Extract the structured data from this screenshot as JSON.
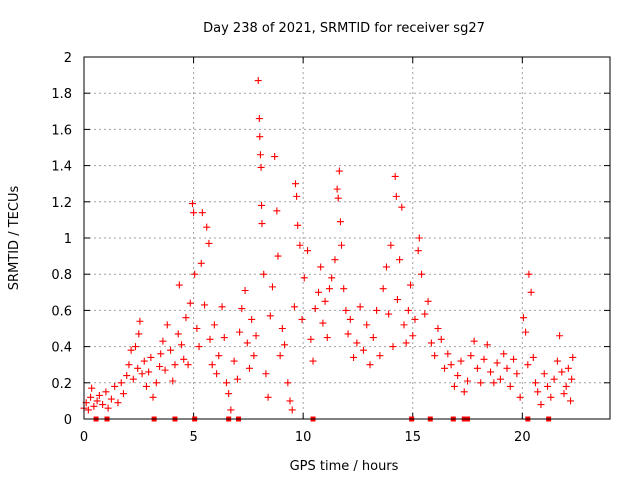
{
  "chart_data": {
    "type": "scatter",
    "title": "Day 238 of 2021, SRMTID for receiver sg27",
    "xlabel": "GPS time / hours",
    "ylabel": "SRMTID / TECUs",
    "xlim": [
      0,
      24
    ],
    "ylim": [
      0,
      2
    ],
    "x_ticks": [
      0,
      5,
      10,
      15,
      20
    ],
    "x_tick_labels": [
      "0",
      "5",
      "10",
      "15",
      "20"
    ],
    "y_ticks": [
      0,
      0.2,
      0.4,
      0.6,
      0.8,
      1,
      1.2,
      1.4,
      1.6,
      1.8,
      2
    ],
    "y_tick_labels": [
      "0",
      "0.2",
      "0.4",
      "0.6",
      "0.8",
      "1",
      "1.2",
      "1.4",
      "1.6",
      "1.8",
      "2"
    ],
    "grid": true,
    "series": [
      {
        "name": "SRMTID",
        "marker": "plus",
        "color": "#ff0000",
        "points": [
          [
            0.0,
            0.06
          ],
          [
            0.1,
            0.09
          ],
          [
            0.2,
            0.05
          ],
          [
            0.3,
            0.12
          ],
          [
            0.35,
            0.17
          ],
          [
            0.45,
            0.07
          ],
          [
            0.6,
            0.1
          ],
          [
            0.7,
            0.13
          ],
          [
            0.85,
            0.08
          ],
          [
            1.0,
            0.15
          ],
          [
            1.1,
            0.06
          ],
          [
            1.25,
            0.11
          ],
          [
            1.4,
            0.18
          ],
          [
            1.55,
            0.09
          ],
          [
            1.7,
            0.2
          ],
          [
            1.8,
            0.14
          ],
          [
            1.95,
            0.24
          ],
          [
            2.05,
            0.3
          ],
          [
            2.15,
            0.38
          ],
          [
            2.25,
            0.22
          ],
          [
            2.35,
            0.4
          ],
          [
            2.45,
            0.28
          ],
          [
            2.5,
            0.47
          ],
          [
            2.55,
            0.54
          ],
          [
            2.65,
            0.25
          ],
          [
            2.75,
            0.32
          ],
          [
            2.85,
            0.18
          ],
          [
            2.95,
            0.26
          ],
          [
            3.05,
            0.34
          ],
          [
            3.15,
            0.12
          ],
          [
            3.3,
            0.2
          ],
          [
            3.45,
            0.29
          ],
          [
            3.5,
            0.36
          ],
          [
            3.6,
            0.43
          ],
          [
            3.7,
            0.27
          ],
          [
            3.8,
            0.52
          ],
          [
            3.95,
            0.38
          ],
          [
            4.05,
            0.21
          ],
          [
            4.15,
            0.3
          ],
          [
            4.3,
            0.47
          ],
          [
            4.35,
            0.74
          ],
          [
            4.45,
            0.41
          ],
          [
            4.55,
            0.33
          ],
          [
            4.65,
            0.56
          ],
          [
            4.75,
            0.3
          ],
          [
            4.85,
            0.64
          ],
          [
            4.95,
            1.19
          ],
          [
            5.0,
            1.14
          ],
          [
            5.05,
            0.8
          ],
          [
            5.15,
            0.5
          ],
          [
            5.25,
            0.4
          ],
          [
            5.35,
            0.86
          ],
          [
            5.4,
            1.14
          ],
          [
            5.5,
            0.63
          ],
          [
            5.6,
            1.06
          ],
          [
            5.7,
            0.97
          ],
          [
            5.75,
            0.44
          ],
          [
            5.85,
            0.3
          ],
          [
            5.95,
            0.52
          ],
          [
            6.05,
            0.25
          ],
          [
            6.15,
            0.35
          ],
          [
            6.3,
            0.62
          ],
          [
            6.4,
            0.45
          ],
          [
            6.5,
            0.2
          ],
          [
            6.6,
            0.14
          ],
          [
            6.7,
            0.05
          ],
          [
            6.85,
            0.32
          ],
          [
            7.0,
            0.22
          ],
          [
            7.1,
            0.48
          ],
          [
            7.2,
            0.61
          ],
          [
            7.35,
            0.71
          ],
          [
            7.45,
            0.42
          ],
          [
            7.55,
            0.28
          ],
          [
            7.65,
            0.55
          ],
          [
            7.75,
            0.35
          ],
          [
            7.85,
            0.46
          ],
          [
            7.95,
            1.87
          ],
          [
            8.0,
            1.66
          ],
          [
            8.02,
            1.56
          ],
          [
            8.05,
            1.46
          ],
          [
            8.08,
            1.39
          ],
          [
            8.1,
            1.18
          ],
          [
            8.12,
            1.08
          ],
          [
            8.2,
            0.8
          ],
          [
            8.3,
            0.25
          ],
          [
            8.4,
            0.12
          ],
          [
            8.5,
            0.57
          ],
          [
            8.6,
            0.73
          ],
          [
            8.7,
            1.45
          ],
          [
            8.8,
            1.15
          ],
          [
            8.85,
            0.9
          ],
          [
            8.95,
            0.35
          ],
          [
            9.05,
            0.5
          ],
          [
            9.15,
            0.41
          ],
          [
            9.3,
            0.2
          ],
          [
            9.4,
            0.1
          ],
          [
            9.5,
            0.05
          ],
          [
            9.6,
            0.62
          ],
          [
            9.65,
            1.3
          ],
          [
            9.7,
            1.23
          ],
          [
            9.75,
            1.07
          ],
          [
            9.85,
            0.96
          ],
          [
            9.95,
            0.55
          ],
          [
            10.05,
            0.78
          ],
          [
            10.2,
            0.93
          ],
          [
            10.35,
            0.44
          ],
          [
            10.45,
            0.32
          ],
          [
            10.55,
            0.61
          ],
          [
            10.7,
            0.7
          ],
          [
            10.8,
            0.84
          ],
          [
            10.9,
            0.53
          ],
          [
            11.0,
            0.65
          ],
          [
            11.1,
            0.45
          ],
          [
            11.2,
            0.72
          ],
          [
            11.3,
            0.78
          ],
          [
            11.45,
            0.88
          ],
          [
            11.55,
            1.27
          ],
          [
            11.6,
            1.22
          ],
          [
            11.65,
            1.37
          ],
          [
            11.7,
            1.09
          ],
          [
            11.75,
            0.96
          ],
          [
            11.85,
            0.72
          ],
          [
            11.95,
            0.6
          ],
          [
            12.05,
            0.47
          ],
          [
            12.15,
            0.55
          ],
          [
            12.3,
            0.34
          ],
          [
            12.45,
            0.42
          ],
          [
            12.6,
            0.62
          ],
          [
            12.75,
            0.38
          ],
          [
            12.9,
            0.52
          ],
          [
            13.05,
            0.3
          ],
          [
            13.2,
            0.45
          ],
          [
            13.35,
            0.6
          ],
          [
            13.5,
            0.35
          ],
          [
            13.65,
            0.72
          ],
          [
            13.8,
            0.84
          ],
          [
            13.9,
            0.58
          ],
          [
            14.0,
            0.96
          ],
          [
            14.1,
            0.4
          ],
          [
            14.2,
            1.34
          ],
          [
            14.25,
            1.23
          ],
          [
            14.3,
            0.66
          ],
          [
            14.4,
            0.88
          ],
          [
            14.5,
            1.17
          ],
          [
            14.6,
            0.52
          ],
          [
            14.7,
            0.42
          ],
          [
            14.8,
            0.6
          ],
          [
            14.9,
            0.74
          ],
          [
            15.0,
            0.46
          ],
          [
            15.1,
            0.55
          ],
          [
            15.25,
            0.93
          ],
          [
            15.3,
            1.0
          ],
          [
            15.4,
            0.8
          ],
          [
            15.55,
            0.58
          ],
          [
            15.7,
            0.65
          ],
          [
            15.85,
            0.42
          ],
          [
            16.0,
            0.35
          ],
          [
            16.15,
            0.5
          ],
          [
            16.3,
            0.44
          ],
          [
            16.45,
            0.28
          ],
          [
            16.6,
            0.36
          ],
          [
            16.75,
            0.3
          ],
          [
            16.9,
            0.18
          ],
          [
            17.05,
            0.24
          ],
          [
            17.2,
            0.32
          ],
          [
            17.35,
            0.15
          ],
          [
            17.5,
            0.21
          ],
          [
            17.65,
            0.35
          ],
          [
            17.8,
            0.43
          ],
          [
            17.95,
            0.28
          ],
          [
            18.1,
            0.2
          ],
          [
            18.25,
            0.33
          ],
          [
            18.4,
            0.41
          ],
          [
            18.55,
            0.26
          ],
          [
            18.7,
            0.2
          ],
          [
            18.85,
            0.31
          ],
          [
            19.0,
            0.22
          ],
          [
            19.15,
            0.36
          ],
          [
            19.3,
            0.28
          ],
          [
            19.45,
            0.18
          ],
          [
            19.6,
            0.33
          ],
          [
            19.75,
            0.25
          ],
          [
            19.9,
            0.12
          ],
          [
            20.05,
            0.56
          ],
          [
            20.15,
            0.48
          ],
          [
            20.25,
            0.3
          ],
          [
            20.3,
            0.8
          ],
          [
            20.4,
            0.7
          ],
          [
            20.5,
            0.34
          ],
          [
            20.6,
            0.2
          ],
          [
            20.7,
            0.15
          ],
          [
            20.85,
            0.08
          ],
          [
            21.0,
            0.25
          ],
          [
            21.15,
            0.18
          ],
          [
            21.3,
            0.12
          ],
          [
            21.45,
            0.22
          ],
          [
            21.6,
            0.32
          ],
          [
            21.7,
            0.46
          ],
          [
            21.8,
            0.26
          ],
          [
            21.9,
            0.14
          ],
          [
            22.0,
            0.18
          ],
          [
            22.1,
            0.28
          ],
          [
            22.2,
            0.1
          ],
          [
            22.25,
            0.22
          ],
          [
            22.3,
            0.34
          ]
        ]
      },
      {
        "name": "data gaps",
        "marker": "square",
        "color": "#ff0000",
        "points": [
          [
            0.55,
            0
          ],
          [
            1.05,
            0
          ],
          [
            3.2,
            0
          ],
          [
            4.15,
            0
          ],
          [
            5.05,
            0
          ],
          [
            6.6,
            0
          ],
          [
            7.05,
            0
          ],
          [
            10.45,
            0
          ],
          [
            14.95,
            0
          ],
          [
            15.8,
            0
          ],
          [
            16.85,
            0
          ],
          [
            17.35,
            0
          ],
          [
            17.5,
            0
          ],
          [
            20.25,
            0
          ],
          [
            21.2,
            0
          ]
        ]
      }
    ]
  }
}
